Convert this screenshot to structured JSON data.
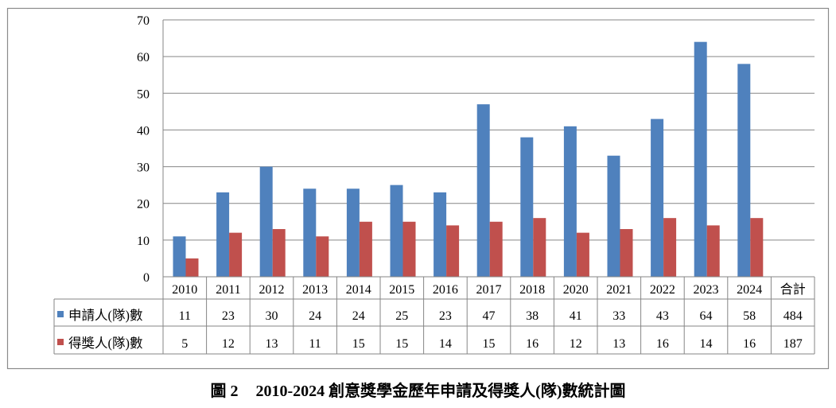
{
  "figure": {
    "label": "圖 2",
    "title": "2010-2024 創意獎學金歷年申請及得獎人(隊)數統計圖"
  },
  "chart_data": {
    "type": "bar",
    "categories": [
      "2010",
      "2011",
      "2012",
      "2013",
      "2014",
      "2015",
      "2016",
      "2017",
      "2018",
      "2020",
      "2021",
      "2022",
      "2023",
      "2024"
    ],
    "total_label": "合計",
    "series": [
      {
        "name": "申請人(隊)數",
        "values": [
          11,
          23,
          30,
          24,
          24,
          25,
          23,
          47,
          38,
          41,
          33,
          43,
          64,
          58
        ],
        "total": 484,
        "color": "#4F81BD"
      },
      {
        "name": "得獎人(隊)數",
        "values": [
          5,
          12,
          13,
          11,
          15,
          15,
          14,
          15,
          16,
          12,
          13,
          16,
          14,
          16
        ],
        "total": 187,
        "color": "#C0504D"
      }
    ],
    "ylim": [
      0,
      70
    ],
    "yticks": [
      0,
      10,
      20,
      30,
      40,
      50,
      60,
      70
    ],
    "grid": true,
    "legend": "data table, left of rows"
  }
}
